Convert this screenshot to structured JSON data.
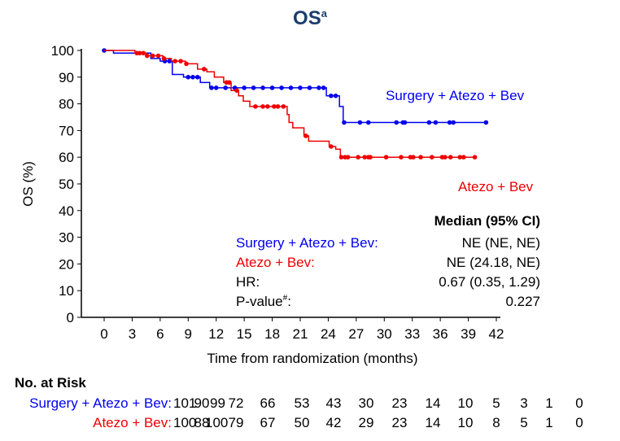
{
  "chart_data": {
    "type": "line",
    "subtype": "kaplan-meier",
    "title": "OS",
    "title_superscript": "a",
    "title_color": "#1a3d6d",
    "xlabel": "Time from randomization (months)",
    "ylabel": "OS (%)",
    "xlim": [
      0,
      42
    ],
    "ylim": [
      0,
      100
    ],
    "xticks": [
      0,
      3,
      6,
      9,
      12,
      15,
      18,
      21,
      24,
      27,
      30,
      33,
      36,
      39,
      42
    ],
    "yticks": [
      0,
      10,
      20,
      30,
      40,
      50,
      60,
      70,
      80,
      90,
      100
    ],
    "grid": false,
    "series": [
      {
        "name": "Surgery + Atezo + Bev",
        "color": "#0000ee",
        "steps": [
          [
            0,
            100
          ],
          [
            1,
            99
          ],
          [
            5,
            97
          ],
          [
            6,
            96
          ],
          [
            7.3,
            91
          ],
          [
            8.5,
            90
          ],
          [
            10.3,
            88
          ],
          [
            11.3,
            86
          ],
          [
            23.8,
            83
          ],
          [
            25.2,
            79
          ],
          [
            25.6,
            73
          ],
          [
            40.9,
            73
          ]
        ],
        "censored": [
          0,
          6.5,
          7,
          9,
          9.5,
          10,
          11.5,
          12,
          13,
          14,
          15,
          16,
          17,
          18,
          19,
          20,
          21,
          22,
          23,
          23.5,
          24.3,
          24.8,
          25.7,
          27.4,
          28.3,
          31.3,
          32.0,
          32.2,
          34.8,
          35.5,
          37.0,
          37.4,
          40.9
        ]
      },
      {
        "name": "Atezo + Bev",
        "color": "#ee0000",
        "steps": [
          [
            0,
            100
          ],
          [
            3.3,
            99
          ],
          [
            4.5,
            98
          ],
          [
            6.3,
            97
          ],
          [
            7.2,
            96
          ],
          [
            8.7,
            95
          ],
          [
            10,
            93
          ],
          [
            11,
            92
          ],
          [
            11.8,
            90
          ],
          [
            12.8,
            88
          ],
          [
            13.6,
            85
          ],
          [
            14.4,
            83
          ],
          [
            14.9,
            81
          ],
          [
            15.6,
            79
          ],
          [
            19.6,
            76
          ],
          [
            19.8,
            73
          ],
          [
            20.2,
            71
          ],
          [
            21.4,
            68
          ],
          [
            21.9,
            66
          ],
          [
            24.1,
            64
          ],
          [
            24.8,
            63
          ],
          [
            25.3,
            60
          ],
          [
            39.7,
            60
          ]
        ],
        "censored": [
          3.5,
          3.8,
          4.2,
          4.6,
          5.2,
          5.8,
          6.4,
          7.6,
          8.2,
          8.8,
          10.7,
          13.1,
          13.4,
          14.2,
          16.2,
          17,
          17.5,
          18.2,
          18.6,
          19.2,
          21.6,
          24.3,
          25.4,
          25.8,
          26.1,
          27.2,
          27.9,
          28.3,
          28.5,
          30.2,
          31.8,
          32.8,
          33.1,
          33.9,
          35.1,
          36.2,
          36.5,
          37.1,
          38.1,
          38.5,
          39.7
        ]
      }
    ],
    "annotations": {
      "surgery_label": "Surgery + Atezo + Bev",
      "atezo_label": "Atezo + Bev"
    },
    "stats_table": {
      "header": "Median (95% CI)",
      "rows": [
        {
          "label": "Surgery + Atezo + Bev:",
          "value": "NE (NE, NE)",
          "color": "#0000ee"
        },
        {
          "label": "Atezo + Bev:",
          "value": "NE (24.18, NE)",
          "color": "#ee0000"
        },
        {
          "label": "HR:",
          "value": "0.67 (0.35, 1.29)",
          "color": "#000000"
        },
        {
          "label": "P-value",
          "label_sup": "#",
          "label_suffix": ":",
          "value": "0.227",
          "color": "#000000"
        }
      ]
    },
    "risk_table": {
      "title": "No. at Risk",
      "rows": [
        {
          "label": "Surgery + Atezo + Bev:",
          "color": "#0000ee",
          "values": [
            "101",
            "99",
            "90",
            "72",
            "66",
            "53",
            "43",
            "30",
            "23",
            "14",
            "10",
            "5",
            "3",
            "1",
            "0"
          ]
        },
        {
          "label": "Atezo + Bev:",
          "color": "#ee0000",
          "values": [
            "100",
            "100",
            "88",
            "79",
            "67",
            "50",
            "42",
            "29",
            "23",
            "14",
            "10",
            "8",
            "5",
            "1",
            "0"
          ]
        }
      ]
    }
  }
}
